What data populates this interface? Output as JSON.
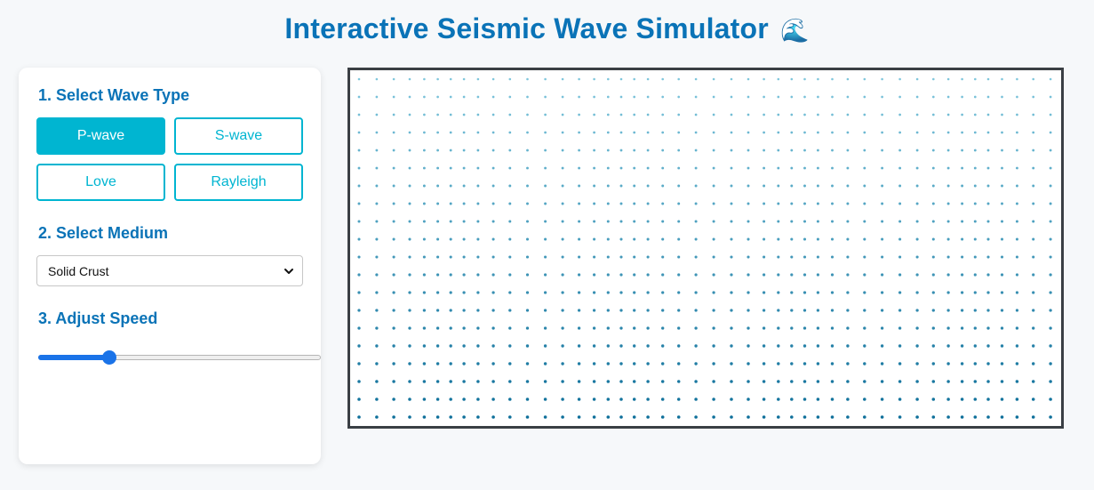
{
  "header": {
    "title": "Interactive Seismic Wave Simulator",
    "emoji": "🌊"
  },
  "controls": {
    "wave_type": {
      "heading": "1. Select Wave Type",
      "options": [
        {
          "label": "P-wave",
          "active": true
        },
        {
          "label": "S-wave",
          "active": false
        },
        {
          "label": "Love",
          "active": false
        },
        {
          "label": "Rayleigh",
          "active": false
        }
      ]
    },
    "medium": {
      "heading": "2. Select Medium",
      "selected": "Solid Crust"
    },
    "speed": {
      "heading": "3. Adjust Speed",
      "value_fraction": 0.25
    }
  },
  "colors": {
    "title": "#0a73b7",
    "accent": "#00b5d1",
    "slider": "#1a73e8",
    "particle_light": "#7fc6dc",
    "particle_dark": "#0e6f9a"
  },
  "simulation": {
    "wave": "P-wave",
    "particle_rows": 20,
    "particle_cols": 46
  }
}
